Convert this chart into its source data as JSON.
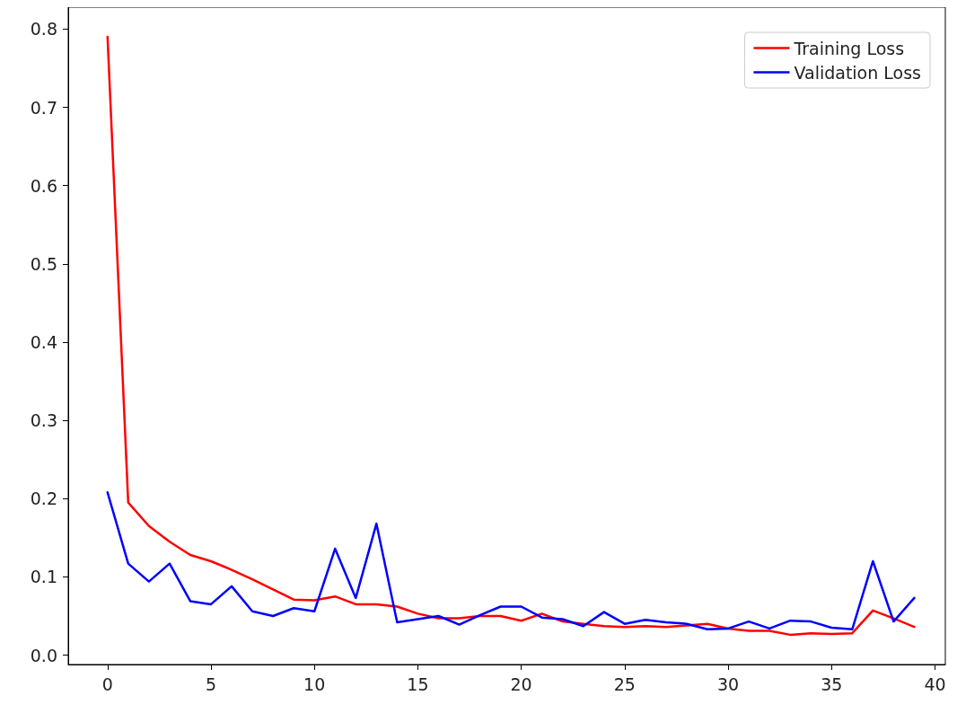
{
  "chart_data": {
    "type": "line",
    "x": [
      0,
      1,
      2,
      3,
      4,
      5,
      6,
      7,
      8,
      9,
      10,
      11,
      12,
      13,
      14,
      15,
      16,
      17,
      18,
      19,
      20,
      21,
      22,
      23,
      24,
      25,
      26,
      27,
      28,
      29,
      30,
      31,
      32,
      33,
      34,
      35,
      36,
      37,
      38,
      39
    ],
    "series": [
      {
        "name": "Training Loss",
        "color": "#ff0000",
        "values": [
          0.79,
          0.195,
          0.165,
          0.145,
          0.128,
          0.12,
          0.109,
          0.097,
          0.084,
          0.071,
          0.07,
          0.075,
          0.065,
          0.065,
          0.062,
          0.053,
          0.047,
          0.047,
          0.05,
          0.05,
          0.044,
          0.053,
          0.043,
          0.04,
          0.037,
          0.036,
          0.037,
          0.036,
          0.038,
          0.04,
          0.034,
          0.031,
          0.031,
          0.026,
          0.028,
          0.027,
          0.028,
          0.057,
          0.047,
          0.036
        ]
      },
      {
        "name": "Validation Loss",
        "color": "#0000ff",
        "values": [
          0.208,
          0.117,
          0.094,
          0.117,
          0.069,
          0.065,
          0.088,
          0.056,
          0.05,
          0.06,
          0.056,
          0.136,
          0.073,
          0.168,
          0.042,
          0.046,
          0.05,
          0.039,
          0.051,
          0.062,
          0.062,
          0.048,
          0.046,
          0.037,
          0.055,
          0.04,
          0.045,
          0.042,
          0.04,
          0.033,
          0.034,
          0.043,
          0.034,
          0.044,
          0.043,
          0.035,
          0.033,
          0.12,
          0.043,
          0.073
        ]
      }
    ],
    "xlim": [
      -1.9,
      40.5
    ],
    "xticks": [
      0,
      5,
      10,
      15,
      20,
      25,
      30,
      35,
      40
    ],
    "ylim": [
      -0.012,
      0.828
    ],
    "yticks": [
      {
        "value": 0,
        "label": "0.0"
      },
      0.1,
      0.2,
      0.3,
      0.4,
      0.5,
      0.6,
      0.7,
      0.8
    ],
    "legend": "top right",
    "grid": false,
    "marker": "none",
    "line_style": "solid"
  }
}
